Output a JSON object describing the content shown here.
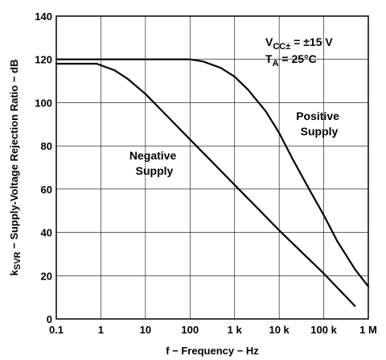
{
  "chart_data": {
    "type": "line",
    "xlabel": "f − Frequency − Hz",
    "ylabel_parts": {
      "k": "k",
      "sub": "SVR",
      "rest": " − Supply-Voltage Rejection Ratio − dB"
    },
    "x_scale": "log",
    "xlim": [
      0.1,
      1000000
    ],
    "ylim": [
      0,
      140
    ],
    "x_ticks": [
      0.1,
      1,
      10,
      100,
      1000,
      10000,
      100000,
      1000000
    ],
    "x_tick_labels": [
      "0.1",
      "1",
      "10",
      "100",
      "1 k",
      "10 k",
      "100 k",
      "1 M"
    ],
    "y_ticks": [
      0,
      20,
      40,
      60,
      80,
      100,
      120,
      140
    ],
    "y_tick_labels": [
      "0",
      "20",
      "40",
      "60",
      "80",
      "100",
      "120",
      "140"
    ],
    "grid": true,
    "conditions": {
      "vcc": {
        "base": "V",
        "sub": "CC±",
        "rest": " = ±15 V"
      },
      "ta": {
        "base": "T",
        "sub": "A",
        "rest": " = 25°C"
      }
    },
    "series": [
      {
        "name_lines": [
          "Positive",
          "Supply"
        ],
        "x": [
          0.1,
          1,
          10,
          100,
          200,
          500,
          1000,
          2000,
          5000,
          10000,
          20000,
          50000,
          100000,
          200000,
          500000,
          1000000
        ],
        "y": [
          120,
          120,
          120,
          120,
          119,
          116,
          112,
          106,
          96,
          86,
          74,
          59,
          48,
          36,
          23,
          15
        ]
      },
      {
        "name_lines": [
          "Negative",
          "Supply"
        ],
        "x": [
          0.1,
          0.8,
          2,
          4,
          10,
          100,
          1000,
          10000,
          100000,
          500000
        ],
        "y": [
          118,
          118,
          115,
          111,
          104,
          83,
          62,
          41,
          21,
          6
        ]
      }
    ]
  }
}
